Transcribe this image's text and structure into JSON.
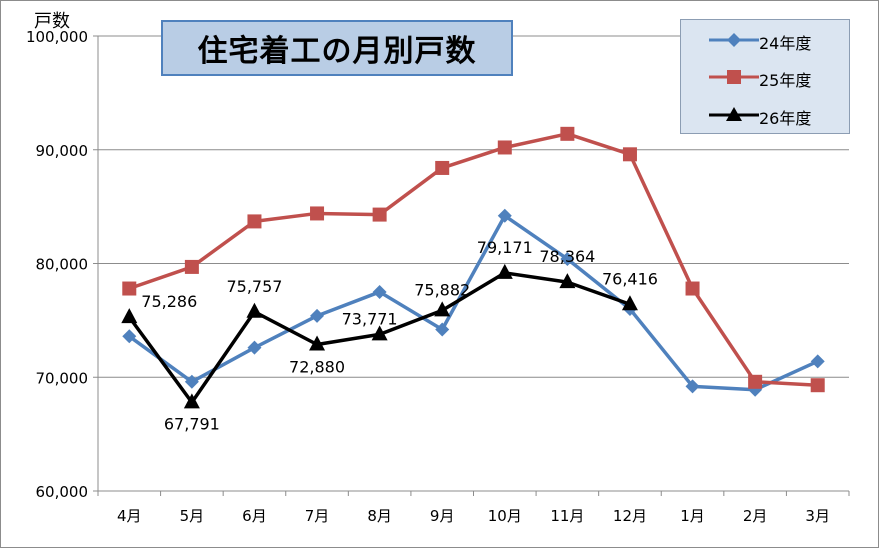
{
  "chart_data": {
    "type": "line",
    "title": "住宅着工の月別戸数",
    "ylabel": "戸数",
    "xlabel": "",
    "categories": [
      "4月",
      "5月",
      "6月",
      "7月",
      "8月",
      "9月",
      "10月",
      "11月",
      "12月",
      "1月",
      "2月",
      "3月"
    ],
    "ylim": [
      60000,
      100000
    ],
    "yticks": [
      60000,
      70000,
      80000,
      90000,
      100000
    ],
    "ytick_labels": [
      "60,000",
      "70,000",
      "80,000",
      "90,000",
      "100,000"
    ],
    "grid": true,
    "legend_position": "top-right",
    "series": [
      {
        "name": "24年度",
        "color": "#4f81bd",
        "marker": "diamond",
        "values": [
          73600,
          69600,
          72600,
          75400,
          77500,
          74200,
          84200,
          80400,
          76000,
          69200,
          68900,
          71400
        ]
      },
      {
        "name": "25年度",
        "color": "#c0504d",
        "marker": "square",
        "values": [
          77800,
          79700,
          83700,
          84400,
          84300,
          88400,
          90200,
          91400,
          89600,
          77800,
          69600,
          69300
        ]
      },
      {
        "name": "26年度",
        "color": "#000000",
        "marker": "triangle",
        "values": [
          75286,
          67791,
          75757,
          72880,
          73771,
          75882,
          79171,
          78364,
          76416,
          null,
          null,
          null
        ],
        "data_labels": [
          "75,286",
          "67,791",
          "75,757",
          "72,880",
          "73,771",
          "75,882",
          "79,171",
          "78,364",
          "76,416"
        ]
      }
    ]
  }
}
